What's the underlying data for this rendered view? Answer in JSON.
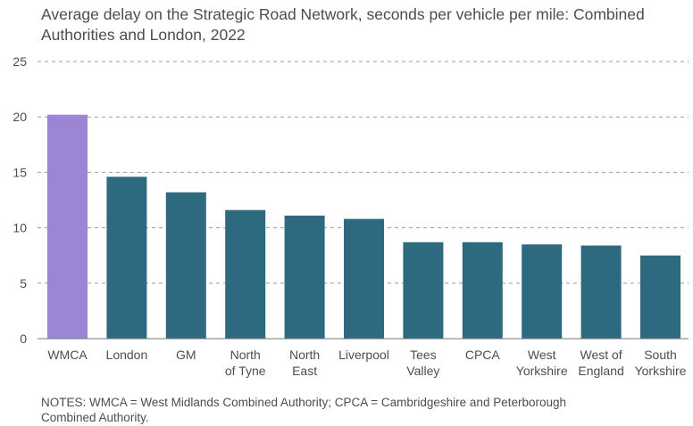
{
  "chart_data": {
    "type": "bar",
    "title_lines": [
      "Average delay on the Strategic Road Network, seconds per vehicle per mile: Combined",
      "Authorities and London, 2022"
    ],
    "categories": [
      [
        "WMCA"
      ],
      [
        "London"
      ],
      [
        "GM"
      ],
      [
        "North",
        "of Tyne"
      ],
      [
        "North",
        "East"
      ],
      [
        "Liverpool"
      ],
      [
        "Tees",
        "Valley"
      ],
      [
        "CPCA"
      ],
      [
        "West",
        "Yorkshire"
      ],
      [
        "West of",
        "England"
      ],
      [
        "South",
        "Yorkshire"
      ]
    ],
    "values": [
      20.2,
      14.6,
      13.2,
      11.6,
      11.1,
      10.8,
      8.7,
      8.7,
      8.5,
      8.4,
      7.5
    ],
    "highlight_index": 0,
    "ylim": [
      0,
      25
    ],
    "yticks": [
      "0",
      "5",
      "10",
      "15",
      "20",
      "25"
    ],
    "xlabel": "",
    "ylabel": "",
    "grid": "horizontal dashed",
    "colors": {
      "bar": "#2d6a80",
      "highlight": "#9b86d6",
      "grid": "#9a9a9a",
      "axis": "#777777"
    },
    "notes_lines": [
      "NOTES: WMCA = West Midlands Combined Authority; CPCA = Cambridgeshire and Peterborough",
      "Combined Authority."
    ]
  }
}
